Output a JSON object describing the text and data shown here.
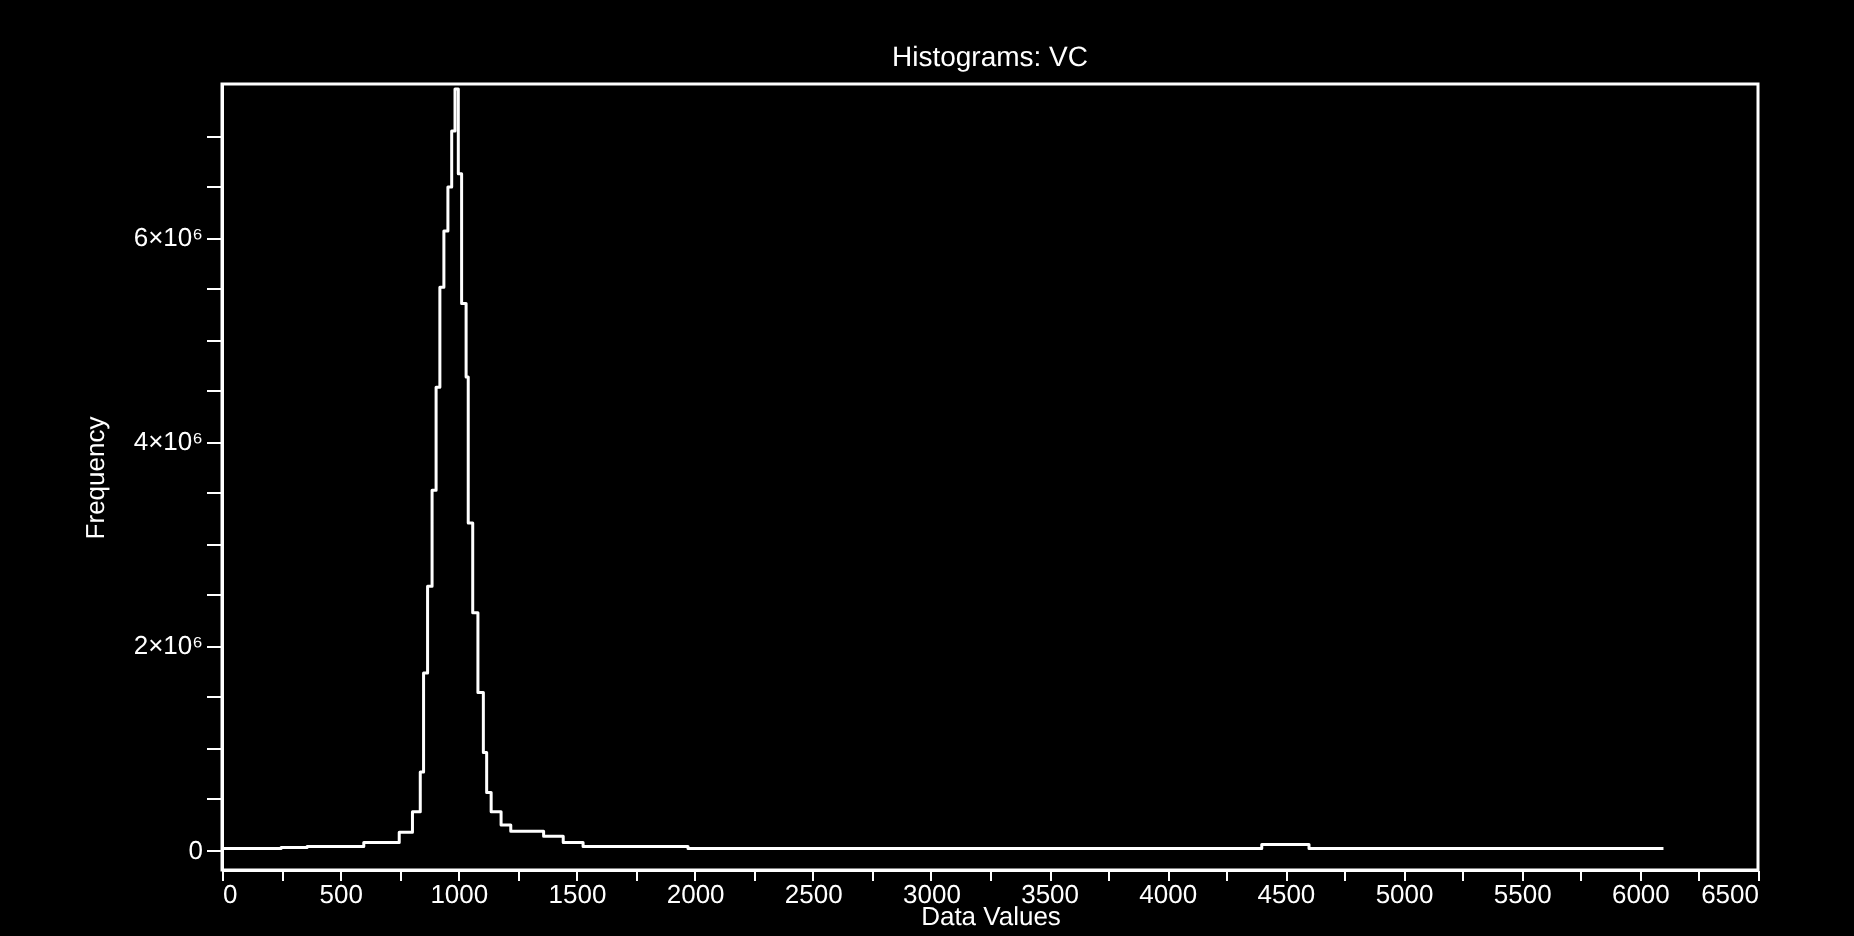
{
  "chart_data": {
    "type": "histogram",
    "title": "Histograms: VC",
    "xlabel": "Data Values",
    "ylabel": "Frequency",
    "bins": [
      0,
      250,
      360,
      600,
      750,
      806,
      839,
      853,
      870,
      889,
      906,
      922,
      939,
      956,
      972,
      986,
      1000,
      1014,
      1033,
      1042,
      1061,
      1083,
      1106,
      1120,
      1139,
      1181,
      1222,
      1361,
      1444,
      1528,
      1972,
      2500,
      3500,
      4400,
      4600,
      5500,
      6100
    ],
    "values": [
      10000,
      20000,
      30000,
      70000,
      170000,
      370000,
      760000,
      1730000,
      2580000,
      3520000,
      4530000,
      5510000,
      6060000,
      6490000,
      7040000,
      7450000,
      6620000,
      5350000,
      4630000,
      3200000,
      2320000,
      1540000,
      950000,
      560000,
      370000,
      240000,
      180000,
      130000,
      70000,
      30000,
      10000,
      10000,
      10000,
      50000,
      10000,
      10000
    ],
    "color": "#ffffff",
    "xlim": [
      0,
      6500
    ],
    "xticks": [
      0,
      {
        "value": 250,
        "label": null
      },
      500,
      {
        "value": 750,
        "label": null
      },
      1000,
      {
        "value": 1250,
        "label": null
      },
      1500,
      {
        "value": 1750,
        "label": null
      },
      2000,
      {
        "value": 2250,
        "label": null
      },
      2500,
      {
        "value": 2750,
        "label": null
      },
      3000,
      {
        "value": 3250,
        "label": null
      },
      3500,
      {
        "value": 3750,
        "label": null
      },
      4000,
      {
        "value": 4250,
        "label": null
      },
      4500,
      {
        "value": 4750,
        "label": null
      },
      5000,
      {
        "value": 5250,
        "label": null
      },
      5500,
      {
        "value": 5750,
        "label": null
      },
      6000,
      {
        "value": 6250,
        "label": null
      },
      6500
    ],
    "ylim": [
      -200000,
      7500000
    ],
    "yticks": [
      0,
      {
        "value": 500000,
        "label": null
      },
      {
        "value": 1000000,
        "label": null
      },
      {
        "value": 1500000,
        "label": null
      },
      {
        "value": 2000000,
        "label": "2×10⁶"
      },
      {
        "value": 2500000,
        "label": null
      },
      {
        "value": 3000000,
        "label": null
      },
      {
        "value": 3500000,
        "label": null
      },
      {
        "value": 4000000,
        "label": "4×10⁶"
      },
      {
        "value": 4500000,
        "label": null
      },
      {
        "value": 5000000,
        "label": null
      },
      {
        "value": 5500000,
        "label": null
      },
      {
        "value": 6000000,
        "label": "6×10⁶"
      },
      {
        "value": 6500000,
        "label": null
      },
      {
        "value": 7000000,
        "label": null
      }
    ],
    "grid": false
  }
}
